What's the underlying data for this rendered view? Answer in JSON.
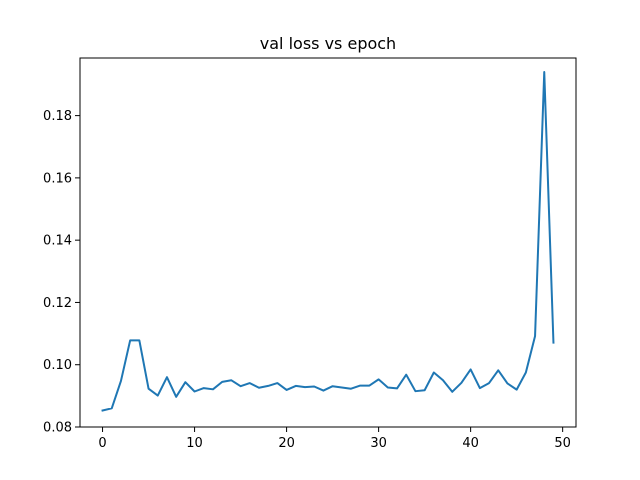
{
  "chart_data": {
    "type": "line",
    "title": "val loss vs epoch",
    "xlabel": "",
    "ylabel": "",
    "xlim": [
      -2.45,
      51.45
    ],
    "ylim": [
      0.08,
      0.1985
    ],
    "x_ticks": [
      0,
      10,
      20,
      30,
      40,
      50
    ],
    "x_tick_labels": [
      "0",
      "10",
      "20",
      "30",
      "40",
      "50"
    ],
    "y_ticks": [
      0.08,
      0.1,
      0.12,
      0.14,
      0.16,
      0.18
    ],
    "y_tick_labels": [
      "0.08",
      "0.10",
      "0.12",
      "0.14",
      "0.16",
      "0.18"
    ],
    "grid": false,
    "legend": "none",
    "series": [
      {
        "color": "#1f77b4",
        "x": [
          0,
          1,
          2,
          3,
          4,
          5,
          6,
          7,
          8,
          9,
          10,
          11,
          12,
          13,
          14,
          15,
          16,
          17,
          18,
          19,
          20,
          21,
          22,
          23,
          24,
          25,
          26,
          27,
          28,
          29,
          30,
          31,
          32,
          33,
          34,
          35,
          36,
          37,
          38,
          39,
          40,
          41,
          42,
          43,
          44,
          45,
          46,
          47,
          48,
          49
        ],
        "values": [
          0.0853,
          0.086,
          0.0948,
          0.1078,
          0.1078,
          0.0923,
          0.0901,
          0.096,
          0.0897,
          0.0944,
          0.0914,
          0.0925,
          0.0921,
          0.0945,
          0.095,
          0.0931,
          0.0941,
          0.0926,
          0.0932,
          0.0941,
          0.0919,
          0.0932,
          0.0928,
          0.093,
          0.0917,
          0.0931,
          0.0927,
          0.0923,
          0.0933,
          0.0933,
          0.0953,
          0.0927,
          0.0924,
          0.0968,
          0.0915,
          0.0918,
          0.0975,
          0.095,
          0.0913,
          0.0942,
          0.0985,
          0.0925,
          0.0941,
          0.0982,
          0.094,
          0.092,
          0.0975,
          0.1092,
          0.194,
          0.1071
        ]
      }
    ]
  }
}
